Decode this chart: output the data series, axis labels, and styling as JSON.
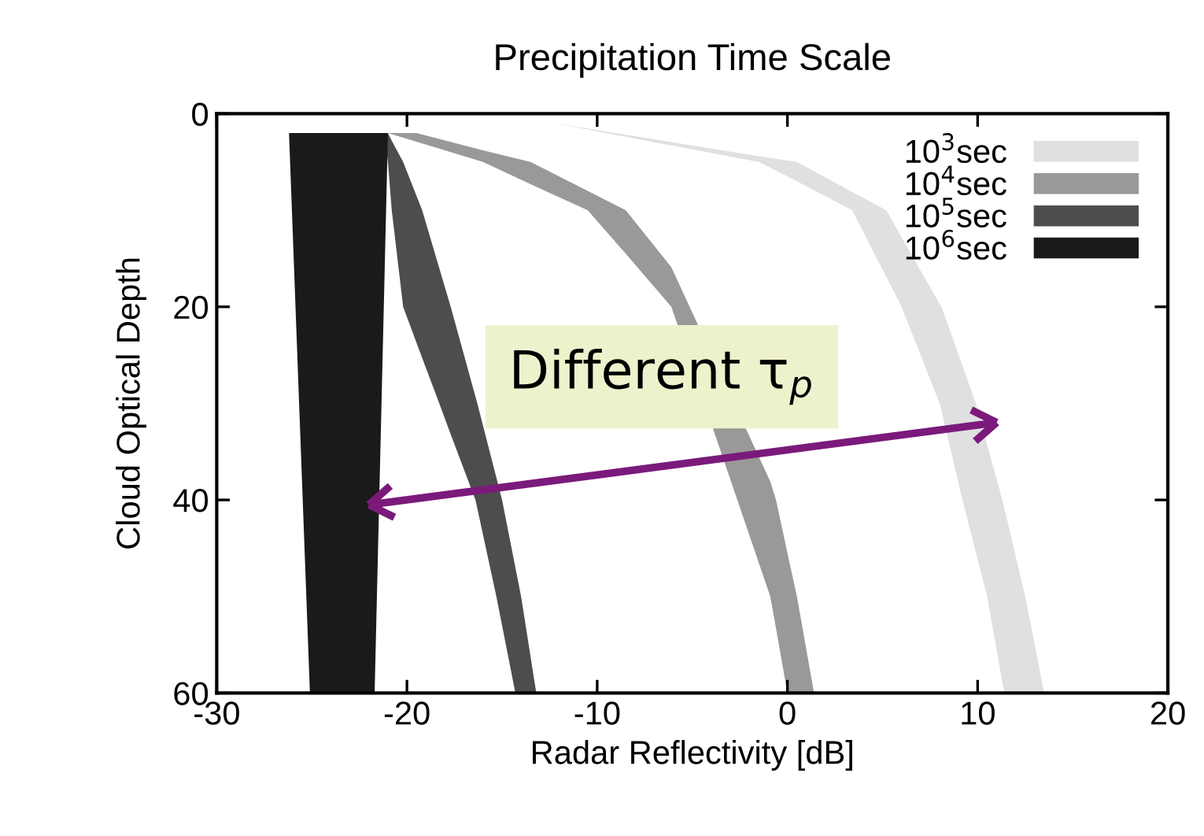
{
  "chart_data": {
    "type": "line",
    "title": "Precipitation Time Scale",
    "xlabel": "Radar Reflectivity [dB]",
    "ylabel": "Cloud Optical Depth",
    "xlim": [
      -30,
      20
    ],
    "xticks": [
      -30,
      -20,
      -10,
      0,
      10,
      20
    ],
    "ylim": [
      60,
      0
    ],
    "yticks": [
      0,
      20,
      40,
      60
    ],
    "grid": false,
    "legend": "top right",
    "series": [
      {
        "name": "10$^{3}$sec",
        "color": "#e0e0e0",
        "x": [
          -12.2,
          -1.5,
          0.5,
          3.4,
          5.2,
          6.0,
          8.0,
          8.1,
          9.2,
          9.9,
          10.5,
          11.3,
          11.4,
          12.5,
          13.5
        ],
        "values": [
          null,
          null,
          null,
          null,
          null,
          null,
          null,
          null,
          null,
          null,
          null,
          null,
          null,
          null,
          null
        ],
        "upper": [
          1,
          4.4,
          5,
          8.1,
          10,
          12.8,
          19.7,
          20,
          26.1,
          30,
          34.3,
          40,
          40.8,
          50,
          60
        ],
        "lower": [
          1,
          5,
          7.0,
          10,
          16.9,
          20,
          30,
          30.8,
          40,
          45.4,
          50,
          58.9,
          60,
          60,
          60
        ]
      },
      {
        "name": "10$^{4}$sec",
        "color": "#999999",
        "x": [
          -21.0,
          -19.5,
          -16.0,
          -13.5,
          -10.5,
          -8.5,
          -6.1,
          -0.9,
          -0.6,
          0.0,
          0.5,
          1.4
        ],
        "values": [
          null,
          null,
          null,
          null,
          null,
          null,
          null,
          null,
          null,
          null,
          null,
          null
        ],
        "upper": [
          2,
          2,
          3.8,
          5,
          8,
          10,
          15.9,
          38.1,
          40,
          45.5,
          50,
          60
        ],
        "lower": [
          2,
          2.9,
          5,
          7.3,
          10,
          14.5,
          20,
          50,
          53.3,
          60,
          60,
          60
        ]
      },
      {
        "name": "10$^{5}$sec",
        "color": "#4d4d4d",
        "x": [
          -21.2,
          -21.0,
          -20.8,
          -20.2,
          -19.2,
          -18.3,
          -17.7,
          -16.4,
          -16.3,
          -15.3,
          -15.0,
          -14.3,
          -14.0,
          -13.2
        ],
        "values": [
          null,
          null,
          null,
          null,
          null,
          null,
          null,
          null,
          null,
          null,
          null,
          null,
          null,
          null
        ],
        "upper": [
          2,
          2,
          2.8,
          5,
          10,
          16,
          20,
          29.3,
          30,
          37.7,
          40,
          47,
          50,
          60
        ],
        "lower": [
          2,
          5,
          10,
          20,
          25.3,
          30,
          33.2,
          40,
          40.9,
          50,
          53,
          60,
          60,
          60
        ]
      },
      {
        "name": "10$^{6}$sec",
        "color": "#1a1a1a",
        "x": [
          -26.2,
          -25.1,
          -21.7,
          -21.0
        ],
        "values": [
          null,
          null,
          null,
          null
        ],
        "upper": [
          2,
          2,
          2,
          2
        ],
        "lower": [
          2,
          60,
          60,
          2
        ]
      }
    ],
    "annotations": [
      "Different τ$_{p}$"
    ]
  }
}
